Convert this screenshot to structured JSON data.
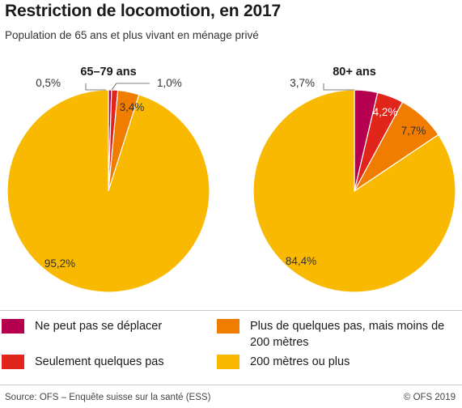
{
  "header": {
    "title": "Restriction de locomotion, en 2017",
    "subtitle": "Population de 65 ans et plus vivant en ménage privé"
  },
  "colors": {
    "cannot_move": "#b5004f",
    "few_steps": "#e1251b",
    "some_steps": "#f07d00",
    "over_200": "#f8b900"
  },
  "chart_data": [
    {
      "type": "pie",
      "title": "65–79 ans",
      "start": "top",
      "direction": "clockwise",
      "slices": [
        {
          "label": "Ne peut pas se déplacer",
          "value": 0.5,
          "value_label": "0,5%",
          "color": "#b5004f"
        },
        {
          "label": "Seulement quelques pas",
          "value": 1.0,
          "value_label": "1,0%",
          "color": "#e1251b"
        },
        {
          "label": "Plus de quelques pas, mais moins de 200 mètres",
          "value": 3.4,
          "value_label": "3,4%",
          "color": "#f07d00"
        },
        {
          "label": "200 mètres ou plus",
          "value": 95.2,
          "value_label": "95,2%",
          "color": "#f8b900"
        }
      ]
    },
    {
      "type": "pie",
      "title": "80+ ans",
      "start": "top",
      "direction": "clockwise",
      "slices": [
        {
          "label": "Ne peut pas se déplacer",
          "value": 3.7,
          "value_label": "3,7%",
          "color": "#b5004f"
        },
        {
          "label": "Seulement quelques pas",
          "value": 4.2,
          "value_label": "4,2%",
          "color": "#e1251b"
        },
        {
          "label": "Plus de quelques pas, mais moins de 200 mètres",
          "value": 7.7,
          "value_label": "7,7%",
          "color": "#f07d00"
        },
        {
          "label": "200 mètres ou plus",
          "value": 84.4,
          "value_label": "84,4%",
          "color": "#f8b900"
        }
      ]
    }
  ],
  "legend": {
    "items": [
      {
        "label": "Ne peut pas se déplacer",
        "color": "#b5004f"
      },
      {
        "label": "Seulement quelques pas",
        "color": "#e1251b"
      },
      {
        "label": "Plus de quelques pas, mais moins de 200 mètres",
        "color": "#f07d00"
      },
      {
        "label": "200 mètres ou plus",
        "color": "#f8b900"
      }
    ]
  },
  "footer": {
    "source": "Source: OFS – Enquête suisse sur la santé (ESS)",
    "copyright": "© OFS 2019"
  }
}
